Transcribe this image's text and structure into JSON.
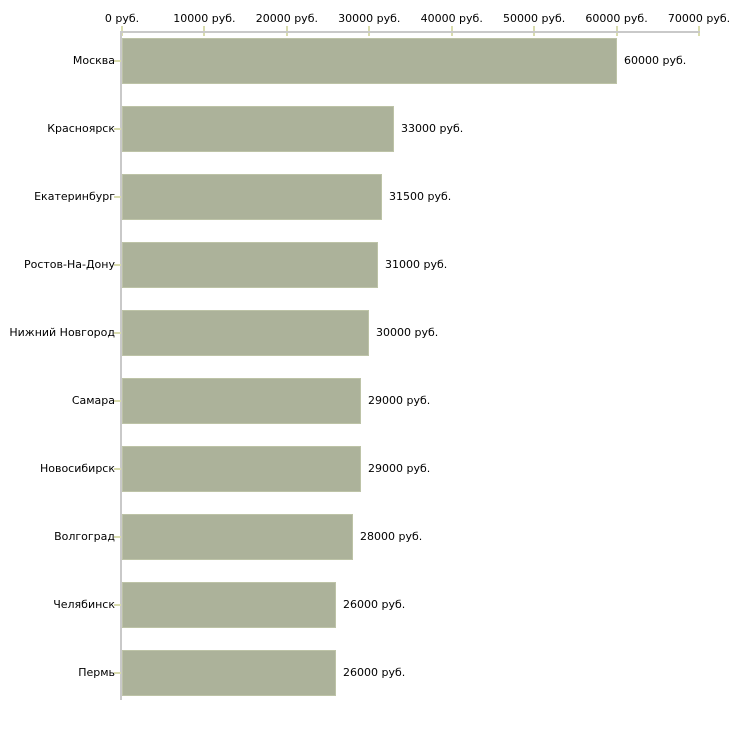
{
  "chart_data": {
    "type": "bar",
    "orientation": "horizontal",
    "title": "",
    "xlabel": "",
    "ylabel": "",
    "categories": [
      "Москва",
      "Красноярск",
      "Екатеринбург",
      "Ростов-На-Дону",
      "Нижний Новгород",
      "Самара",
      "Новосибирск",
      "Волгоград",
      "Челябинск",
      "Пермь"
    ],
    "values": [
      60000,
      33000,
      31500,
      31000,
      30000,
      29000,
      29000,
      28000,
      26000,
      26000
    ],
    "value_labels": [
      "60000 руб.",
      "33000 руб.",
      "31500 руб.",
      "31000 руб.",
      "30000 руб.",
      "29000 руб.",
      "29000 руб.",
      "28000 руб.",
      "26000 руб.",
      "26000 руб."
    ],
    "unit": "руб.",
    "x_axis": {
      "position": "top",
      "min": 0,
      "max": 70000,
      "ticks": [
        0,
        10000,
        20000,
        30000,
        40000,
        50000,
        60000,
        70000
      ],
      "tick_labels": [
        "0 руб.",
        "10000 руб.",
        "20000 руб.",
        "30000 руб.",
        "40000 руб.",
        "50000 руб.",
        "60000 руб.",
        "70000 руб."
      ]
    },
    "xlim": [
      0,
      70000
    ],
    "grid": false,
    "legend": false,
    "colors": {
      "bar_fill": "#acb29a",
      "bar_border": "#bdc3a7",
      "axis_line": "#c9c9c9",
      "tick_mark": "#d9dcae",
      "text": "#000000",
      "background": "#ffffff"
    }
  }
}
